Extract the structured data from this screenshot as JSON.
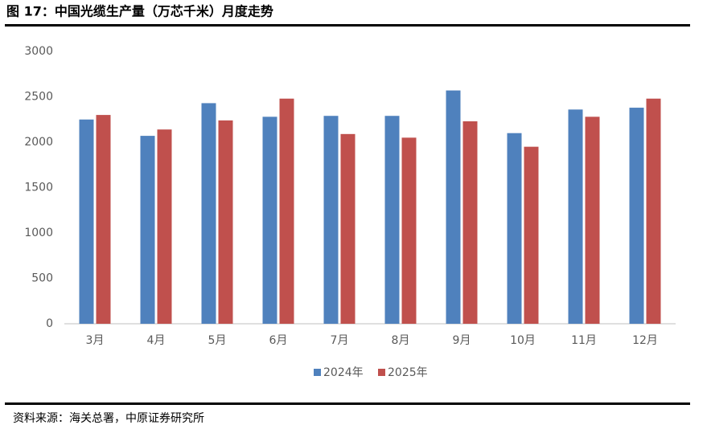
{
  "chart_data": {
    "type": "bar",
    "title": "图 17：中国光缆生产量（万芯千米）月度走势",
    "source": "资料来源：海关总署，中原证券研究所",
    "categories": [
      "3月",
      "4月",
      "5月",
      "6月",
      "7月",
      "8月",
      "9月",
      "10月",
      "11月",
      "12月"
    ],
    "series": [
      {
        "name": "2024年",
        "color": "#4f81bd",
        "values": [
          2250,
          2070,
          2430,
          2280,
          2290,
          2290,
          2570,
          2100,
          2360,
          2380
        ]
      },
      {
        "name": "2025年",
        "color": "#c0504d",
        "values": [
          2300,
          2140,
          2240,
          2480,
          2090,
          2050,
          2230,
          1950,
          2280,
          2480
        ]
      }
    ],
    "ylim": [
      0,
      3000
    ],
    "yticks": [
      0,
      500,
      1000,
      1500,
      2000,
      2500,
      3000
    ],
    "grid": false,
    "legend": "bottom"
  }
}
